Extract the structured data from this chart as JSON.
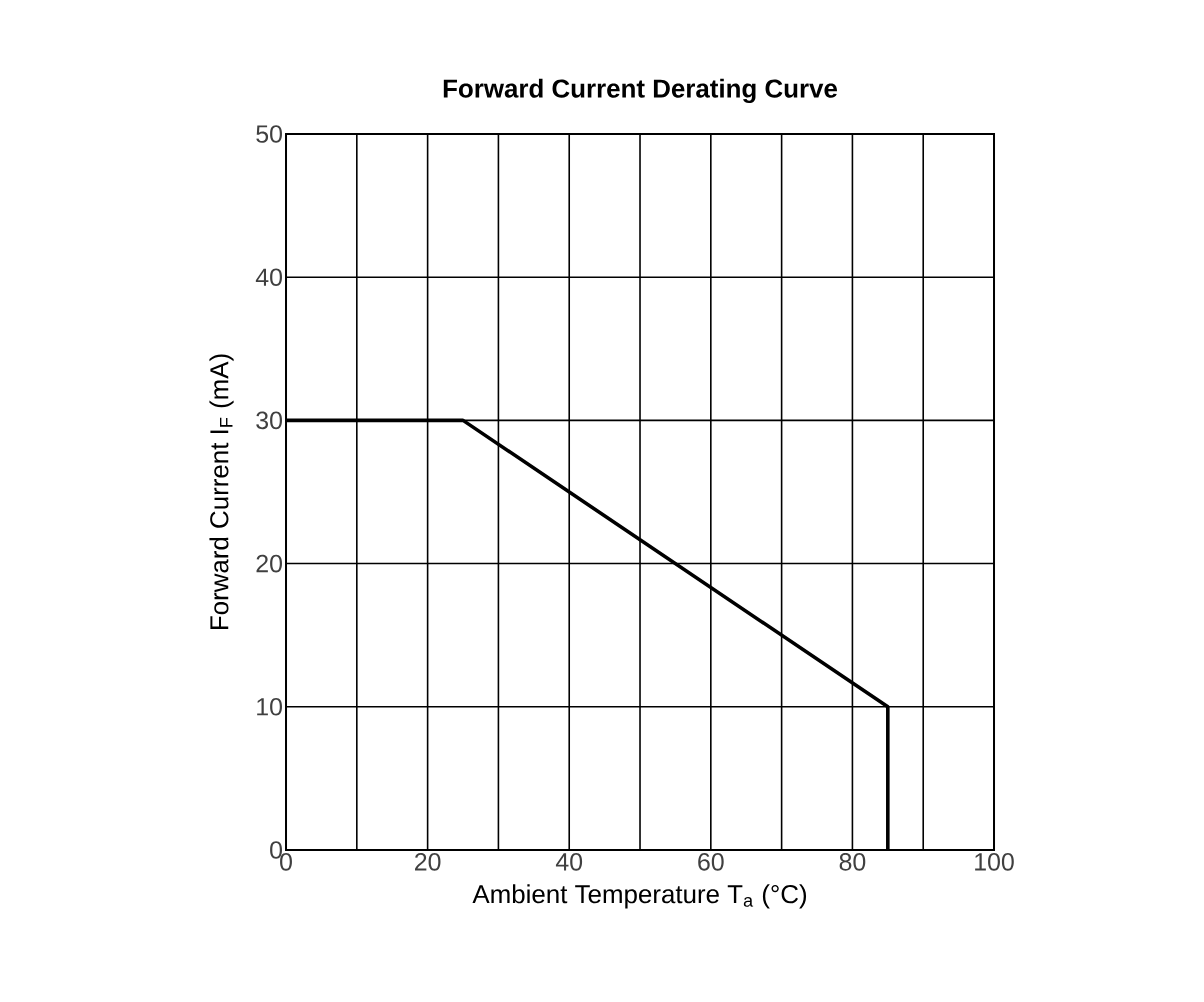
{
  "chart_data": {
    "type": "line",
    "title": "Forward Current Derating Curve",
    "xlabel": "Ambient Temperature T$_{a}$ (°C)",
    "ylabel": "Forward Current I$_{F}$ (mA)",
    "x": [
      0,
      25,
      85,
      85
    ],
    "series": [
      {
        "color": "#000000",
        "values": [
          30,
          30,
          10,
          0
        ]
      }
    ],
    "xlim": [
      0,
      100
    ],
    "xticks": [
      0,
      {
        "value": 10,
        "label": null
      },
      20,
      {
        "value": 30,
        "label": null
      },
      40,
      {
        "value": 50,
        "label": null
      },
      60,
      {
        "value": 70,
        "label": null
      },
      80,
      {
        "value": 90,
        "label": null
      },
      100
    ],
    "ylim": [
      0,
      50
    ],
    "yticks": [
      0,
      10,
      20,
      30,
      40,
      50
    ],
    "grid": true
  }
}
